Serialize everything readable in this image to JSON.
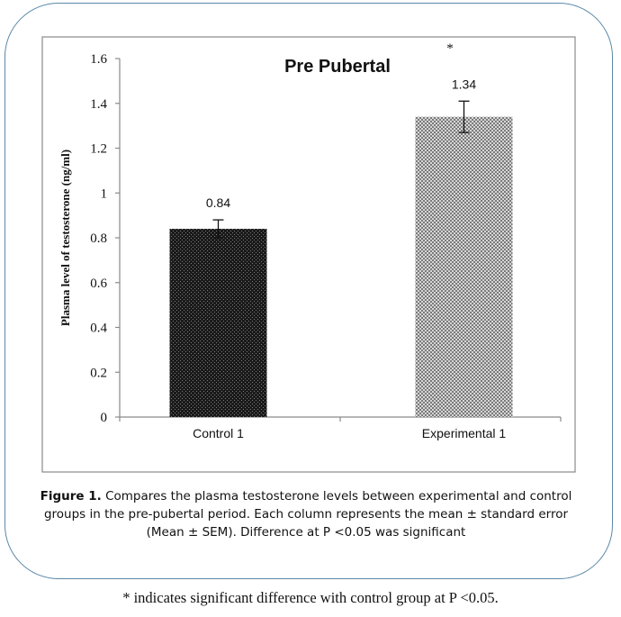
{
  "chart_data": {
    "type": "bar",
    "title": "Pre Pubertal",
    "ylabel": "Plasma level of testosterone (ng/ml)",
    "xlabel": "",
    "ylim": [
      0,
      1.6
    ],
    "yticks": [
      "0",
      "0.2",
      "0.4",
      "0.6",
      "0.8",
      "1",
      "1.2",
      "1.4",
      "1.6"
    ],
    "categories": [
      "Control 1",
      "Experimental 1"
    ],
    "values": [
      0.84,
      1.34
    ],
    "errors": [
      0.04,
      0.07
    ],
    "data_labels": [
      "0.84",
      "1.34"
    ],
    "significance_marker": "*",
    "grid": false
  },
  "caption": {
    "label": "Figure 1.",
    "text": "Compares the plasma testosterone levels between experimental and control groups in the pre-pubertal period. Each column represents the mean ± standard error (Mean ± SEM). Difference at P <0.05 was significant"
  },
  "footnote": "* indicates significant difference with control group at P <0.05."
}
